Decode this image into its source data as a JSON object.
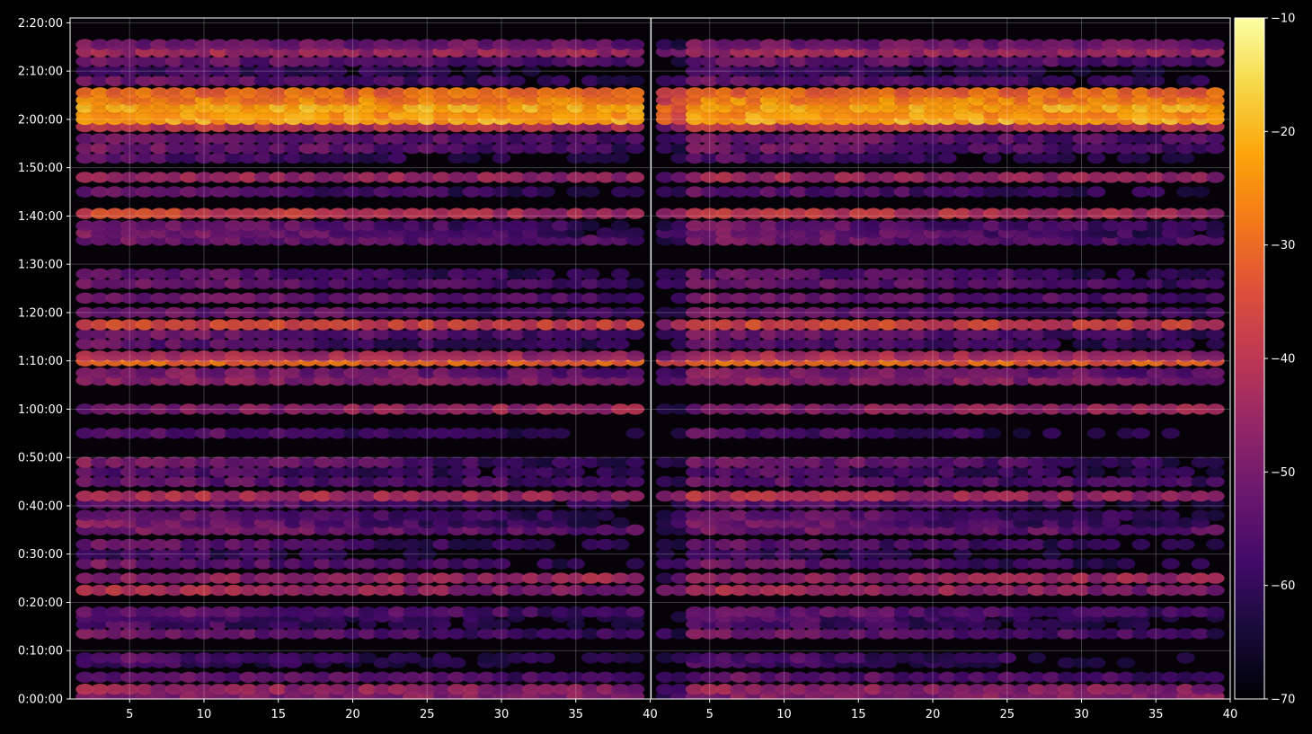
{
  "chart_data": {
    "type": "heatmap",
    "title": "",
    "xlabel": "",
    "ylabel": "",
    "panels": [
      {
        "name": "",
        "x_range": [
          1,
          40
        ]
      },
      {
        "name": "",
        "x_range": [
          1,
          40
        ]
      }
    ],
    "x_ticks": [
      5,
      10,
      15,
      20,
      25,
      30,
      35,
      40
    ],
    "x_tick_labels": [
      "5",
      "10",
      "15",
      "20",
      "25",
      "30",
      "35",
      "40"
    ],
    "y_range_seconds": [
      0,
      8460
    ],
    "y_ticks_seconds": [
      0,
      600,
      1200,
      1800,
      2400,
      3000,
      3600,
      4200,
      4800,
      5400,
      6000,
      6600,
      7200,
      7800,
      8400
    ],
    "y_tick_labels": [
      "0:00:00",
      "0:10:00",
      "0:20:00",
      "0:30:00",
      "0:40:00",
      "0:50:00",
      "1:00:00",
      "1:10:00",
      "1:20:00",
      "1:30:00",
      "1:40:00",
      "1:50:00",
      "2:00:00",
      "2:10:00",
      "2:20:00"
    ],
    "grid": true,
    "colorbar": {
      "colormap": "inferno",
      "range": [
        -70,
        -10
      ],
      "ticks": [
        -10,
        -20,
        -30,
        -40,
        -50,
        -60,
        -70
      ],
      "tick_labels": [
        "−10",
        "−20",
        "−30",
        "−40",
        "−50",
        "−60",
        "−70"
      ]
    },
    "bands": [
      {
        "time": "0:00:30",
        "peak": -48,
        "fade": 0
      },
      {
        "time": "0:02:00",
        "peak": -44,
        "fade": 0.2
      },
      {
        "time": "0:04:30",
        "peak": -52,
        "fade": 0.3
      },
      {
        "time": "0:07:30",
        "peak": -56,
        "fade": 0.6
      },
      {
        "time": "0:08:30",
        "peak": -54,
        "fade": 0.5
      },
      {
        "time": "0:13:30",
        "peak": -50,
        "fade": 0.4
      },
      {
        "time": "0:15:30",
        "peak": -54,
        "fade": 0.6
      },
      {
        "time": "0:17:00",
        "peak": -54,
        "fade": 0.5
      },
      {
        "time": "0:18:00",
        "peak": -52,
        "fade": 0.3
      },
      {
        "time": "0:22:30",
        "peak": -40,
        "fade": 0.5
      },
      {
        "time": "0:25:00",
        "peak": -48,
        "fade": -0.2
      },
      {
        "time": "0:28:00",
        "peak": -50,
        "fade": 0.6
      },
      {
        "time": "0:30:00",
        "peak": -56,
        "fade": 0.7
      },
      {
        "time": "0:32:00",
        "peak": -52,
        "fade": 0.5
      },
      {
        "time": "0:35:00",
        "peak": -50,
        "fade": 0.2
      },
      {
        "time": "0:36:30",
        "peak": -48,
        "fade": 0.7
      },
      {
        "time": "0:38:00",
        "peak": -50,
        "fade": 0.6
      },
      {
        "time": "0:40:30",
        "peak": -52,
        "fade": 0.5
      },
      {
        "time": "0:42:00",
        "peak": -40,
        "fade": 0.3
      },
      {
        "time": "0:45:00",
        "peak": -52,
        "fade": 0.3
      },
      {
        "time": "0:47:00",
        "peak": -54,
        "fade": 0.4
      },
      {
        "time": "0:49:00",
        "peak": -48,
        "fade": 0.6
      },
      {
        "time": "0:55:00",
        "peak": -52,
        "fade": 0.6
      },
      {
        "time": "1:00:00",
        "peak": -50,
        "fade": -0.3
      },
      {
        "time": "1:06:00",
        "peak": -46,
        "fade": 0.2
      },
      {
        "time": "1:07:30",
        "peak": -48,
        "fade": 0.3
      },
      {
        "time": "1:10:00",
        "peak": -30,
        "fade": 0.1
      },
      {
        "time": "1:11:00",
        "peak": -42,
        "fade": 0.2
      },
      {
        "time": "1:13:30",
        "peak": -52,
        "fade": 0.5
      },
      {
        "time": "1:15:30",
        "peak": -50,
        "fade": 0.4
      },
      {
        "time": "1:17:30",
        "peak": -36,
        "fade": 0.1
      },
      {
        "time": "1:20:00",
        "peak": -50,
        "fade": 0.4
      },
      {
        "time": "1:23:00",
        "peak": -50,
        "fade": 0.3
      },
      {
        "time": "1:26:00",
        "peak": -50,
        "fade": 0.4
      },
      {
        "time": "1:28:00",
        "peak": -52,
        "fade": 0.5
      },
      {
        "time": "1:35:00",
        "peak": -50,
        "fade": 0.3
      },
      {
        "time": "1:36:30",
        "peak": -48,
        "fade": 0.6
      },
      {
        "time": "1:38:00",
        "peak": -50,
        "fade": 0.5
      },
      {
        "time": "1:40:30",
        "peak": -36,
        "fade": 0.4
      },
      {
        "time": "1:45:00",
        "peak": -52,
        "fade": 0.5
      },
      {
        "time": "1:48:00",
        "peak": -44,
        "fade": 0.1
      },
      {
        "time": "1:52:00",
        "peak": -54,
        "fade": 0.6
      },
      {
        "time": "1:54:00",
        "peak": -50,
        "fade": 0.4
      },
      {
        "time": "1:56:00",
        "peak": -50,
        "fade": 0.3
      },
      {
        "time": "1:58:30",
        "peak": -40,
        "fade": 0.1
      },
      {
        "time": "2:00:00",
        "peak": -22,
        "fade": 0
      },
      {
        "time": "2:01:00",
        "peak": -24,
        "fade": 0
      },
      {
        "time": "2:02:30",
        "peak": -22,
        "fade": 0
      },
      {
        "time": "2:04:00",
        "peak": -26,
        "fade": 0
      },
      {
        "time": "2:05:30",
        "peak": -30,
        "fade": 0
      },
      {
        "time": "2:08:00",
        "peak": -50,
        "fade": 0.6
      },
      {
        "time": "2:10:00",
        "peak": -56,
        "fade": 0.5
      },
      {
        "time": "2:12:00",
        "peak": -52,
        "fade": 0.2
      },
      {
        "time": "2:14:00",
        "peak": -44,
        "fade": 0
      },
      {
        "time": "2:15:30",
        "peak": -50,
        "fade": 0.1
      }
    ]
  }
}
